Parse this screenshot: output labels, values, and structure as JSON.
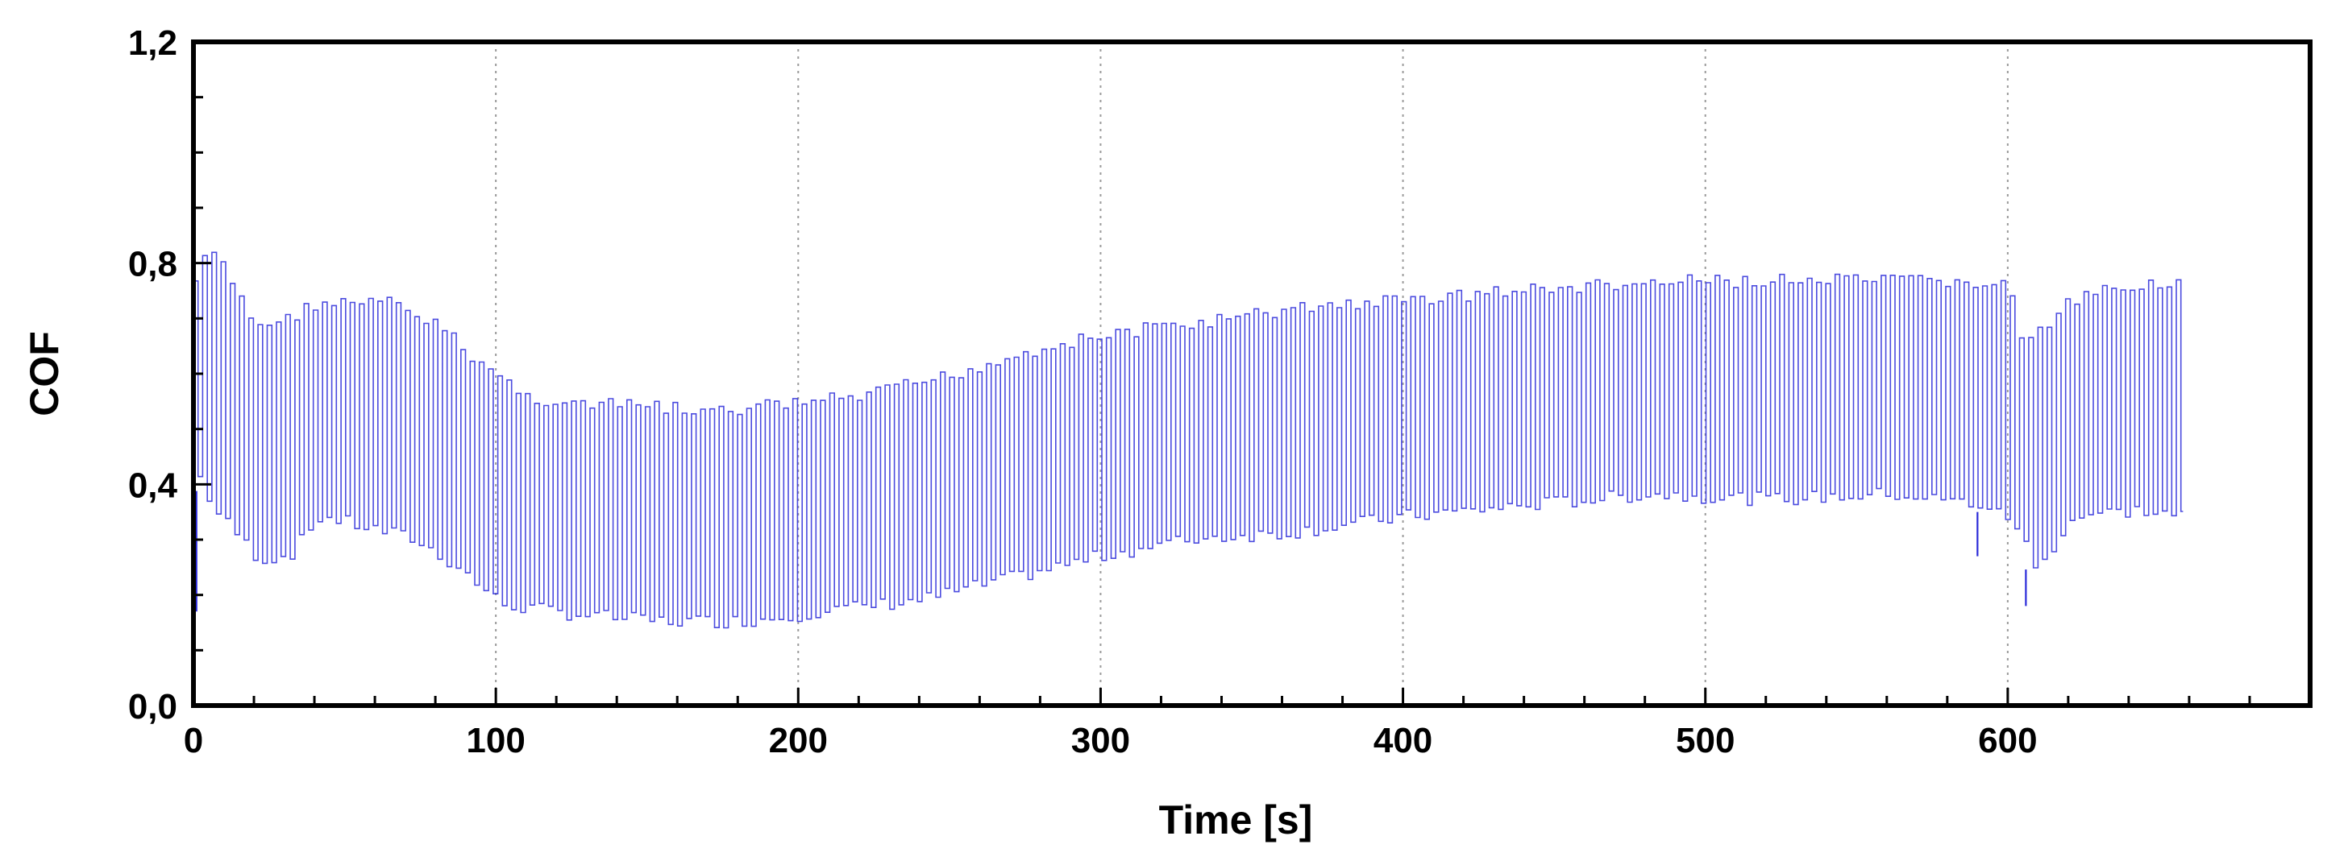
{
  "chart_data": {
    "type": "line",
    "title": "",
    "xlabel": "Time [s]",
    "ylabel": "COF",
    "xlim": [
      0,
      700
    ],
    "ylim": [
      0.0,
      1.2
    ],
    "xticks": [
      0,
      100,
      200,
      300,
      400,
      500,
      600
    ],
    "yticks": [
      0.0,
      0.4,
      0.8,
      1.2
    ],
    "xtick_labels": [
      "0",
      "100",
      "200",
      "300",
      "400",
      "500",
      "600"
    ],
    "ytick_labels": [
      "0,0",
      "0,4",
      "0,8",
      "1,2"
    ],
    "grid": "vertical dotted",
    "legend": "none",
    "series": [
      {
        "color": "#2b2bd9",
        "oscillating": true,
        "upper_envelope": [
          [
            0,
            0.78
          ],
          [
            5,
            0.84
          ],
          [
            12,
            0.78
          ],
          [
            20,
            0.7
          ],
          [
            30,
            0.71
          ],
          [
            40,
            0.74
          ],
          [
            55,
            0.74
          ],
          [
            65,
            0.74
          ],
          [
            80,
            0.7
          ],
          [
            95,
            0.63
          ],
          [
            110,
            0.57
          ],
          [
            130,
            0.555
          ],
          [
            150,
            0.555
          ],
          [
            170,
            0.54
          ],
          [
            190,
            0.555
          ],
          [
            220,
            0.57
          ],
          [
            250,
            0.61
          ],
          [
            280,
            0.66
          ],
          [
            310,
            0.69
          ],
          [
            340,
            0.71
          ],
          [
            370,
            0.735
          ],
          [
            400,
            0.745
          ],
          [
            430,
            0.76
          ],
          [
            460,
            0.77
          ],
          [
            500,
            0.78
          ],
          [
            540,
            0.78
          ],
          [
            580,
            0.78
          ],
          [
            600,
            0.77
          ],
          [
            605,
            0.66
          ],
          [
            620,
            0.74
          ],
          [
            640,
            0.775
          ],
          [
            658,
            0.78
          ]
        ],
        "lower_envelope": [
          [
            0,
            0.4
          ],
          [
            5,
            0.34
          ],
          [
            12,
            0.3
          ],
          [
            20,
            0.25
          ],
          [
            30,
            0.26
          ],
          [
            40,
            0.33
          ],
          [
            55,
            0.31
          ],
          [
            70,
            0.29
          ],
          [
            85,
            0.24
          ],
          [
            100,
            0.17
          ],
          [
            120,
            0.155
          ],
          [
            150,
            0.14
          ],
          [
            180,
            0.14
          ],
          [
            210,
            0.16
          ],
          [
            240,
            0.18
          ],
          [
            270,
            0.22
          ],
          [
            300,
            0.26
          ],
          [
            330,
            0.29
          ],
          [
            360,
            0.3
          ],
          [
            400,
            0.33
          ],
          [
            440,
            0.35
          ],
          [
            480,
            0.37
          ],
          [
            520,
            0.36
          ],
          [
            560,
            0.37
          ],
          [
            590,
            0.35
          ],
          [
            602,
            0.31
          ],
          [
            607,
            0.23
          ],
          [
            620,
            0.33
          ],
          [
            640,
            0.34
          ],
          [
            658,
            0.33
          ]
        ],
        "spikes_low": [
          [
            1,
            0.17
          ],
          [
            606,
            0.18
          ],
          [
            590,
            0.27
          ]
        ]
      }
    ]
  }
}
